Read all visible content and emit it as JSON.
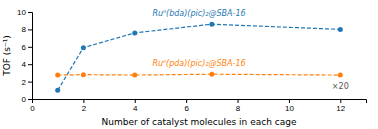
{
  "chart_data": {
    "type": "line",
    "xlabel": "Number of catalyst molecules in each cage",
    "ylabel": "TOF (s⁻¹)",
    "x": [
      1,
      2,
      4,
      7,
      12
    ],
    "series": [
      {
        "name": "Ruᴵᴵ(bda)(pic)₂@SBA-16",
        "values": [
          1.0,
          5.9,
          7.6,
          8.6,
          8.0
        ]
      },
      {
        "name": "Ruᴵᴵ(pda)(pic)₂@SBA-16",
        "values": [
          2.75,
          2.8,
          2.75,
          2.85,
          2.75
        ]
      }
    ],
    "annotations": [
      {
        "text": "×20"
      }
    ],
    "marker": "circle",
    "line_style": "dashed",
    "xlim": [
      0,
      13
    ],
    "ylim": [
      0,
      10
    ],
    "xticks": [
      0,
      2,
      4,
      6,
      8,
      10,
      12
    ],
    "yticks": [
      0,
      2,
      4,
      6,
      8,
      10
    ],
    "grid": false
  }
}
